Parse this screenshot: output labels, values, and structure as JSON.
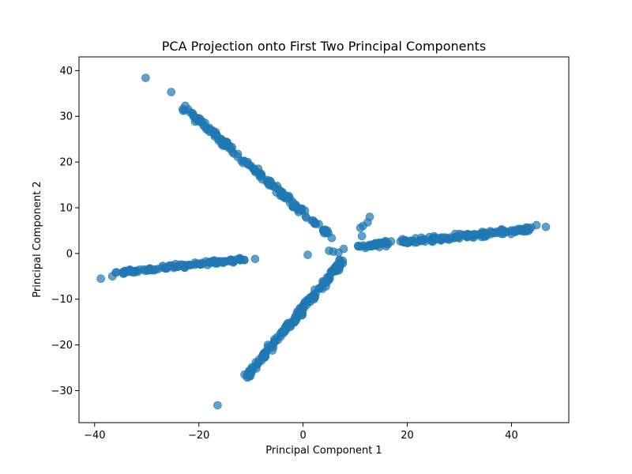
{
  "chart_data": {
    "type": "scatter",
    "title": "PCA Projection onto First Two Principal Components",
    "xlabel": "Principal Component 1",
    "ylabel": "Principal Component 2",
    "xlim": [
      -43,
      51
    ],
    "ylim": [
      -37,
      43
    ],
    "xticks": [
      -40,
      -20,
      0,
      20,
      40
    ],
    "yticks": [
      -30,
      -20,
      -10,
      0,
      10,
      20,
      30,
      40
    ],
    "tick_labels_x": [
      "−40",
      "−20",
      "0",
      "20",
      "40"
    ],
    "tick_labels_y": [
      "−30",
      "−20",
      "−10",
      "0",
      "10",
      "20",
      "30",
      "40"
    ],
    "grid": false,
    "marker_color": "#1f77b4",
    "marker_opacity": 0.7,
    "branches": [
      {
        "from": [
          -23,
          32
        ],
        "to": [
          5,
          4
        ],
        "count": 160,
        "jitter": 0.45
      },
      {
        "from": [
          -11,
          -27
        ],
        "to": [
          8,
          -1
        ],
        "count": 160,
        "jitter": 0.5
      },
      {
        "from": [
          10,
          1.5
        ],
        "to": [
          44,
          5.3
        ],
        "count": 160,
        "jitter": 0.45
      },
      {
        "from": [
          -36,
          -4.3
        ],
        "to": [
          -11,
          -1.2
        ],
        "count": 110,
        "jitter": 0.35
      }
    ],
    "outliers": [
      [
        -30.2,
        38.4
      ],
      [
        -25.3,
        35.3
      ],
      [
        -22.6,
        32.3
      ],
      [
        -23.0,
        31.2
      ],
      [
        -21.2,
        30.7
      ],
      [
        -16.4,
        -33.2
      ],
      [
        -38.8,
        -5.5
      ],
      [
        -36.6,
        -5.0
      ],
      [
        -9.2,
        -1.2
      ],
      [
        0.9,
        -0.3
      ],
      [
        12.8,
        8.0
      ],
      [
        12.4,
        6.8
      ],
      [
        11.5,
        6.0
      ],
      [
        11.0,
        5.6
      ],
      [
        5.5,
        3.4
      ],
      [
        11.3,
        3.8
      ],
      [
        12.0,
        1.2
      ],
      [
        44.8,
        6.2
      ],
      [
        46.6,
        5.8
      ],
      [
        42.7,
        5.0
      ],
      [
        41.8,
        5.0
      ],
      [
        5.0,
        0.6
      ],
      [
        5.8,
        0.4
      ],
      [
        6.8,
        0.2
      ],
      [
        7.8,
        1.0
      ]
    ]
  }
}
